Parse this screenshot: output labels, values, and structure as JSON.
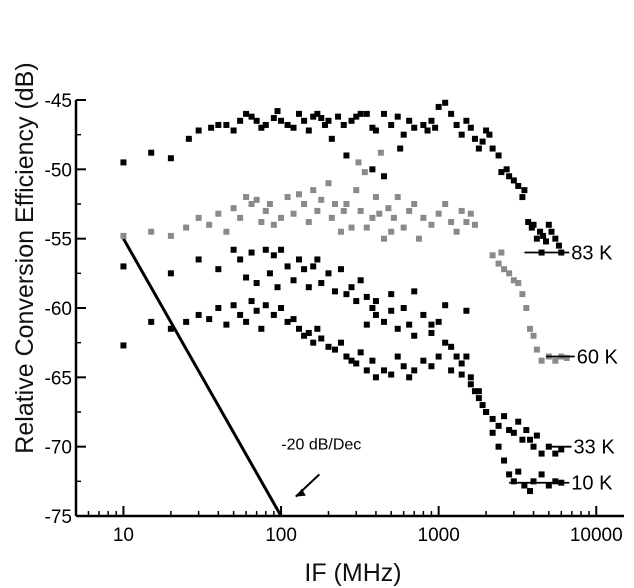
{
  "chart_data": {
    "type": "scatter",
    "xlabel": "IF (MHz)",
    "ylabel": "Relative Conversion Efficiency (dB)",
    "xscale": "log",
    "xlim": [
      5,
      15000
    ],
    "ylim": [
      -75,
      -45
    ],
    "xticks": [
      10,
      100,
      1000,
      10000
    ],
    "xtick_labels": [
      "10",
      "100",
      "1000",
      "10000"
    ],
    "yticks": [
      -75,
      -70,
      -65,
      -60,
      -55,
      -50,
      -45
    ],
    "ytick_labels": [
      "-75",
      "-70",
      "-65",
      "-60",
      "-55",
      "-50",
      "-45"
    ],
    "grid": false,
    "series": [
      {
        "name": "83 K",
        "color": "#000000",
        "points": [
          [
            10,
            -49.5
          ],
          [
            15,
            -48.8
          ],
          [
            20,
            -49.2
          ],
          [
            26,
            -47.8
          ],
          [
            30,
            -47.2
          ],
          [
            36,
            -47.0
          ],
          [
            40,
            -46.8
          ],
          [
            45,
            -46.8
          ],
          [
            50,
            -47.2
          ],
          [
            55,
            -46.5
          ],
          [
            60,
            -46.0
          ],
          [
            65,
            -46.2
          ],
          [
            70,
            -46.5
          ],
          [
            75,
            -47.0
          ],
          [
            80,
            -46.8
          ],
          [
            90,
            -46.3
          ],
          [
            95,
            -45.8
          ],
          [
            100,
            -46.5
          ],
          [
            110,
            -46.8
          ],
          [
            120,
            -47.0
          ],
          [
            130,
            -46.0
          ],
          [
            140,
            -46.5
          ],
          [
            150,
            -47.2
          ],
          [
            160,
            -46.2
          ],
          [
            170,
            -46.0
          ],
          [
            180,
            -46.3
          ],
          [
            190,
            -46.8
          ],
          [
            200,
            -46.5
          ],
          [
            210,
            -47.8
          ],
          [
            230,
            -46.2
          ],
          [
            250,
            -46.8
          ],
          [
            280,
            -46.5
          ],
          [
            300,
            -46.2
          ],
          [
            320,
            -46.0
          ],
          [
            350,
            -46.0
          ],
          [
            380,
            -47.0
          ],
          [
            400,
            -47.2
          ],
          [
            450,
            -46.0
          ],
          [
            500,
            -46.8
          ],
          [
            550,
            -46.2
          ],
          [
            600,
            -47.5
          ],
          [
            650,
            -46.5
          ],
          [
            700,
            -47.0
          ],
          [
            800,
            -46.8
          ],
          [
            850,
            -47.2
          ],
          [
            900,
            -46.5
          ],
          [
            950,
            -47.0
          ],
          [
            1000,
            -45.5
          ],
          [
            1100,
            -45.2
          ],
          [
            1200,
            -46.0
          ],
          [
            1300,
            -46.8
          ],
          [
            1400,
            -47.5
          ],
          [
            1500,
            -46.5
          ],
          [
            1600,
            -47.0
          ],
          [
            1700,
            -47.8
          ],
          [
            1800,
            -48.5
          ],
          [
            1900,
            -48.0
          ],
          [
            2000,
            -47.2
          ],
          [
            2100,
            -47.5
          ],
          [
            2200,
            -48.5
          ],
          [
            2400,
            -49.0
          ],
          [
            2500,
            -50.2
          ],
          [
            2700,
            -50.0
          ],
          [
            2800,
            -50.5
          ],
          [
            3000,
            -50.8
          ],
          [
            3200,
            -51.2
          ],
          [
            3400,
            -52.0
          ],
          [
            3500,
            -51.5
          ],
          [
            3700,
            -53.8
          ],
          [
            3900,
            -54.2
          ],
          [
            4000,
            -54.0
          ],
          [
            4200,
            -55.0
          ],
          [
            4400,
            -54.5
          ],
          [
            4500,
            -56.0
          ],
          [
            4600,
            -54.8
          ],
          [
            4800,
            -55.2
          ],
          [
            5000,
            -54.0
          ],
          [
            5200,
            -54.5
          ],
          [
            5500,
            -55.0
          ],
          [
            5800,
            -55.5
          ],
          [
            6000,
            -56.0
          ],
          [
            260,
            -49.0
          ],
          [
            380,
            -50.0
          ],
          [
            450,
            -50.5
          ],
          [
            570,
            -48.5
          ]
        ]
      },
      {
        "name": "60 K",
        "color": "#8a8a8a",
        "points": [
          [
            10,
            -54.8
          ],
          [
            15,
            -54.5
          ],
          [
            20,
            -54.8
          ],
          [
            25,
            -54.2
          ],
          [
            30,
            -53.5
          ],
          [
            35,
            -54.0
          ],
          [
            40,
            -53.2
          ],
          [
            45,
            -54.5
          ],
          [
            50,
            -52.8
          ],
          [
            55,
            -53.5
          ],
          [
            60,
            -52.0
          ],
          [
            65,
            -52.5
          ],
          [
            70,
            -52.2
          ],
          [
            75,
            -53.8
          ],
          [
            80,
            -53.0
          ],
          [
            85,
            -52.5
          ],
          [
            90,
            -54.0
          ],
          [
            100,
            -53.5
          ],
          [
            110,
            -52.0
          ],
          [
            120,
            -53.2
          ],
          [
            130,
            -51.8
          ],
          [
            140,
            -52.5
          ],
          [
            150,
            -53.8
          ],
          [
            160,
            -51.5
          ],
          [
            170,
            -53.0
          ],
          [
            180,
            -52.2
          ],
          [
            200,
            -51.0
          ],
          [
            210,
            -53.5
          ],
          [
            220,
            -52.5
          ],
          [
            240,
            -54.5
          ],
          [
            250,
            -53.0
          ],
          [
            260,
            -52.5
          ],
          [
            280,
            -54.2
          ],
          [
            300,
            -51.5
          ],
          [
            320,
            -53.0
          ],
          [
            350,
            -54.2
          ],
          [
            380,
            -53.5
          ],
          [
            400,
            -52.0
          ],
          [
            420,
            -53.2
          ],
          [
            450,
            -55.0
          ],
          [
            480,
            -52.8
          ],
          [
            500,
            -54.5
          ],
          [
            520,
            -53.5
          ],
          [
            550,
            -52.0
          ],
          [
            600,
            -54.2
          ],
          [
            650,
            -53.0
          ],
          [
            700,
            -52.5
          ],
          [
            750,
            -55.0
          ],
          [
            800,
            -53.5
          ],
          [
            900,
            -54.0
          ],
          [
            1000,
            -53.2
          ],
          [
            1100,
            -52.5
          ],
          [
            1200,
            -53.8
          ],
          [
            1300,
            -54.5
          ],
          [
            1400,
            -53.0
          ],
          [
            1500,
            -53.8
          ],
          [
            1600,
            -53.2
          ],
          [
            1700,
            -54.0
          ],
          [
            2200,
            -56.2
          ],
          [
            2400,
            -56.8
          ],
          [
            2500,
            -56.0
          ],
          [
            2600,
            -57.2
          ],
          [
            2800,
            -57.5
          ],
          [
            3000,
            -58.0
          ],
          [
            3200,
            -58.2
          ],
          [
            3400,
            -59.0
          ],
          [
            3600,
            -60.0
          ],
          [
            3800,
            -61.5
          ],
          [
            4000,
            -62.0
          ],
          [
            4200,
            -63.0
          ],
          [
            4500,
            -63.8
          ],
          [
            5000,
            -63.5
          ],
          [
            5500,
            -63.8
          ],
          [
            6000,
            -63.5
          ],
          [
            6500,
            -63.6
          ],
          [
            430,
            -48.8
          ],
          [
            310,
            -49.5
          ],
          [
            340,
            -50.2
          ]
        ]
      },
      {
        "name": "33 K",
        "color": "#000000",
        "points": [
          [
            10,
            -57.0
          ],
          [
            20,
            -57.5
          ],
          [
            30,
            -56.5
          ],
          [
            40,
            -57.2
          ],
          [
            50,
            -55.8
          ],
          [
            55,
            -56.5
          ],
          [
            60,
            -57.8
          ],
          [
            65,
            -56.0
          ],
          [
            70,
            -58.2
          ],
          [
            80,
            -55.8
          ],
          [
            85,
            -57.5
          ],
          [
            90,
            -56.2
          ],
          [
            95,
            -58.5
          ],
          [
            100,
            -55.8
          ],
          [
            110,
            -57.0
          ],
          [
            120,
            -58.0
          ],
          [
            130,
            -56.5
          ],
          [
            140,
            -57.2
          ],
          [
            150,
            -58.5
          ],
          [
            160,
            -57.0
          ],
          [
            170,
            -56.5
          ],
          [
            180,
            -58.2
          ],
          [
            200,
            -57.5
          ],
          [
            220,
            -58.8
          ],
          [
            240,
            -57.2
          ],
          [
            260,
            -59.0
          ],
          [
            280,
            -58.5
          ],
          [
            300,
            -59.5
          ],
          [
            320,
            -58.0
          ],
          [
            350,
            -59.2
          ],
          [
            380,
            -60.0
          ],
          [
            400,
            -59.5
          ],
          [
            450,
            -61.0
          ],
          [
            500,
            -60.2
          ],
          [
            550,
            -61.5
          ],
          [
            600,
            -60.0
          ],
          [
            650,
            -61.2
          ],
          [
            700,
            -62.0
          ],
          [
            800,
            -60.5
          ],
          [
            900,
            -61.8
          ],
          [
            1000,
            -61.0
          ],
          [
            1100,
            -62.5
          ],
          [
            1200,
            -62.8
          ],
          [
            1300,
            -63.5
          ],
          [
            1400,
            -64.0
          ],
          [
            1500,
            -63.5
          ],
          [
            1600,
            -65.0
          ],
          [
            1700,
            -66.0
          ],
          [
            1800,
            -66.5
          ],
          [
            1900,
            -67.0
          ],
          [
            2000,
            -67.5
          ],
          [
            2200,
            -68.0
          ],
          [
            2400,
            -68.5
          ],
          [
            2600,
            -67.8
          ],
          [
            2800,
            -68.8
          ],
          [
            3000,
            -69.0
          ],
          [
            3200,
            -68.2
          ],
          [
            3400,
            -69.5
          ],
          [
            3600,
            -68.8
          ],
          [
            3800,
            -69.5
          ],
          [
            4000,
            -70.0
          ],
          [
            4200,
            -69.2
          ],
          [
            4500,
            -70.5
          ],
          [
            5000,
            -70.0
          ],
          [
            5500,
            -70.5
          ],
          [
            6000,
            -70.2
          ]
        ]
      },
      {
        "name": "10 K",
        "color": "#000000",
        "points": [
          [
            10,
            -62.7
          ],
          [
            15,
            -61.0
          ],
          [
            20,
            -61.5
          ],
          [
            25,
            -61.0
          ],
          [
            30,
            -60.5
          ],
          [
            35,
            -60.8
          ],
          [
            40,
            -60.0
          ],
          [
            45,
            -61.2
          ],
          [
            50,
            -59.8
          ],
          [
            55,
            -60.5
          ],
          [
            60,
            -61.0
          ],
          [
            65,
            -59.5
          ],
          [
            70,
            -60.2
          ],
          [
            75,
            -61.5
          ],
          [
            80,
            -59.8
          ],
          [
            90,
            -60.5
          ],
          [
            100,
            -60.0
          ],
          [
            110,
            -61.0
          ],
          [
            120,
            -60.8
          ],
          [
            130,
            -61.5
          ],
          [
            140,
            -62.0
          ],
          [
            150,
            -61.8
          ],
          [
            160,
            -62.5
          ],
          [
            170,
            -61.5
          ],
          [
            180,
            -62.2
          ],
          [
            200,
            -62.8
          ],
          [
            220,
            -63.0
          ],
          [
            240,
            -62.5
          ],
          [
            260,
            -63.5
          ],
          [
            280,
            -63.8
          ],
          [
            300,
            -64.0
          ],
          [
            320,
            -63.2
          ],
          [
            350,
            -64.5
          ],
          [
            380,
            -63.8
          ],
          [
            400,
            -65.0
          ],
          [
            450,
            -64.5
          ],
          [
            500,
            -64.8
          ],
          [
            550,
            -63.5
          ],
          [
            600,
            -64.2
          ],
          [
            650,
            -65.0
          ],
          [
            700,
            -64.5
          ],
          [
            800,
            -63.8
          ],
          [
            900,
            -64.2
          ],
          [
            1000,
            -63.5
          ],
          [
            1200,
            -64.5
          ],
          [
            1400,
            -64.8
          ],
          [
            1600,
            -65.5
          ],
          [
            1800,
            -66.0
          ],
          [
            2000,
            -67.5
          ],
          [
            2200,
            -69.0
          ],
          [
            2400,
            -70.0
          ],
          [
            2600,
            -71.0
          ],
          [
            2800,
            -72.0
          ],
          [
            3000,
            -72.5
          ],
          [
            3200,
            -71.8
          ],
          [
            3500,
            -72.8
          ],
          [
            3800,
            -73.2
          ],
          [
            4000,
            -72.5
          ],
          [
            4500,
            -72.0
          ],
          [
            5000,
            -72.8
          ],
          [
            5500,
            -72.5
          ],
          [
            6000,
            -72.6
          ],
          [
            1500,
            -60.2
          ],
          [
            900,
            -61.2
          ],
          [
            1100,
            -59.8
          ],
          [
            700,
            -58.8
          ],
          [
            500,
            -59.0
          ],
          [
            400,
            -60.5
          ],
          [
            350,
            -61.2
          ]
        ]
      }
    ],
    "reference_line": {
      "label": "-20 dB/Dec",
      "points": [
        [
          10,
          -55
        ],
        [
          100,
          -75
        ]
      ]
    },
    "annotations": [
      {
        "text": "-20 dB/Dec",
        "x": 180,
        "y": -70.2
      }
    ],
    "series_labels": [
      {
        "text": "83 K",
        "leader_x": [
          3500,
          6000
        ],
        "y": -56.0
      },
      {
        "text": "60 K",
        "leader_x": [
          4800,
          6500
        ],
        "y": -63.5
      },
      {
        "text": "33 K",
        "leader_x": [
          5000,
          6200
        ],
        "y": -70.0
      },
      {
        "text": "10 K",
        "leader_x": [
          2800,
          6000
        ],
        "y": -72.6
      }
    ]
  }
}
